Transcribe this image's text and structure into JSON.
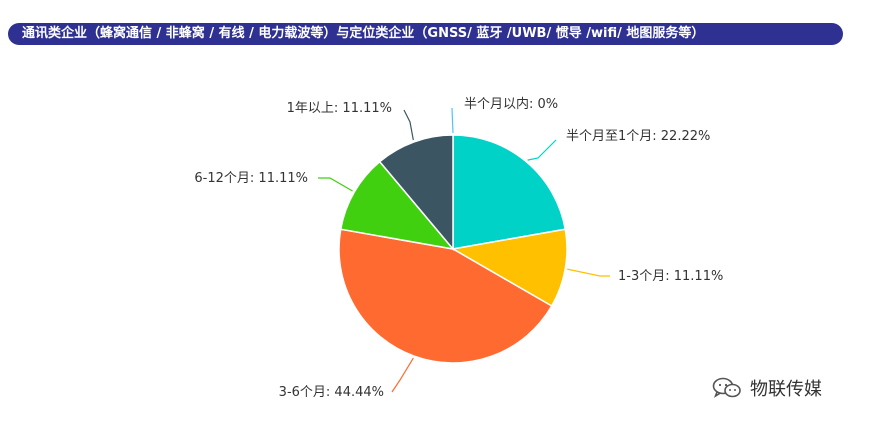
{
  "title": "通讯类企业（蜂窝通信 / 非蜂窝 / 有线 / 电力载波等）与定位类企业（GNSS/ 蓝牙 /UWB/ 惯导 /wifi/ 地图服务等）",
  "watermark": {
    "text": "物联传媒",
    "icon": "wechat-icon"
  },
  "chart_data": {
    "type": "pie",
    "title": "通讯类企业（蜂窝通信 / 非蜂窝 / 有线 / 电力载波等）与定位类企业（GNSS/ 蓝牙 /UWB/ 惯导 /wifi/ 地图服务等）",
    "slices": [
      {
        "label": "半个月以内",
        "value": 0,
        "display": "半个月以内: 0%",
        "color": "#4fc3f7"
      },
      {
        "label": "半个月至1个月",
        "value": 22.22,
        "display": "半个月至1个月: 22.22%",
        "color": "#00d2c8"
      },
      {
        "label": "1-3个月",
        "value": 11.11,
        "display": "1-3个月: 11.11%",
        "color": "#ffc000"
      },
      {
        "label": "3-6个月",
        "value": 44.44,
        "display": "3-6个月: 44.44%",
        "color": "#ff6a30"
      },
      {
        "label": "6-12个月",
        "value": 11.11,
        "display": "6-12个月: 11.11%",
        "color": "#40d010"
      },
      {
        "label": "1年以上",
        "value": 11.11,
        "display": "1年以上: 11.11%",
        "color": "#3c5563"
      }
    ],
    "start_angle": "12 o'clock",
    "direction": "clockwise",
    "legend": "none"
  }
}
